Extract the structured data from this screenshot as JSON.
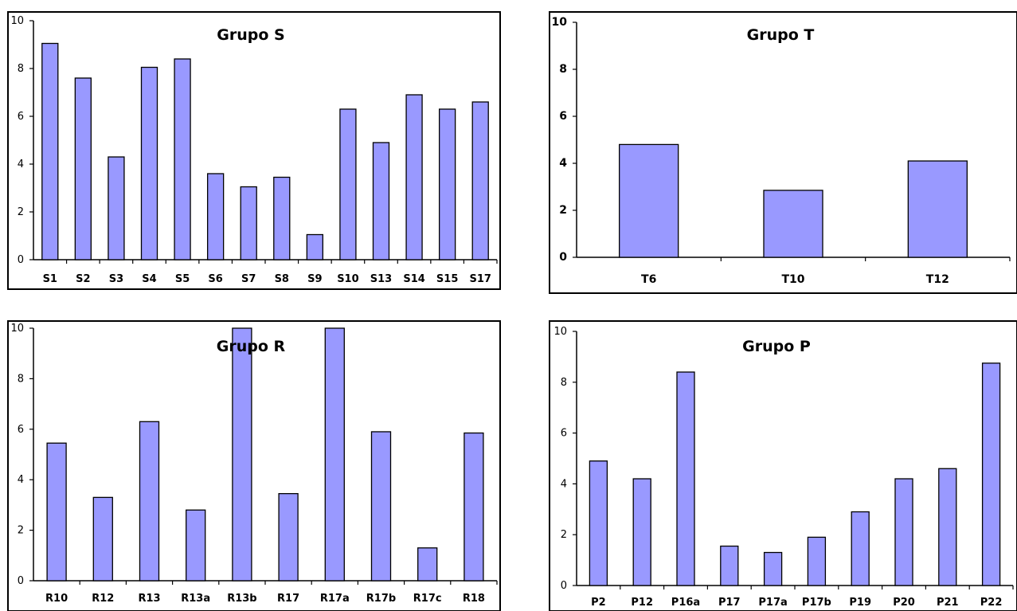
{
  "colors": {
    "bar_fill": "#9999ff",
    "bar_stroke": "#000000",
    "frame": "#000000",
    "background": "#ffffff"
  },
  "chart_data": [
    {
      "type": "bar",
      "title": "Grupo S",
      "categories": [
        "S1",
        "S2",
        "S3",
        "S4",
        "S5",
        "S6",
        "S7",
        "S8",
        "S9",
        "S10",
        "S13",
        "S14",
        "S15",
        "S17"
      ],
      "values": [
        9.05,
        7.6,
        4.3,
        8.05,
        8.4,
        3.6,
        3.05,
        3.45,
        1.05,
        6.3,
        4.9,
        6.9,
        6.3,
        6.6
      ],
      "yticks": [
        "0",
        "2",
        "4",
        "6",
        "8",
        "10"
      ],
      "ylim": [
        0,
        10
      ],
      "grid": false,
      "legend": "none"
    },
    {
      "type": "bar",
      "title": "Grupo T",
      "categories": [
        "T6",
        "T10",
        "T12"
      ],
      "values": [
        4.8,
        2.85,
        4.1
      ],
      "yticks": [
        "0",
        "2",
        "4",
        "6",
        "8",
        "10"
      ],
      "ylim": [
        0,
        10
      ],
      "grid": false,
      "legend": "none"
    },
    {
      "type": "bar",
      "title": "Grupo R",
      "categories": [
        "R10",
        "R12",
        "R13",
        "R13a",
        "R13b",
        "R17",
        "R17a",
        "R17b",
        "R17c",
        "R18"
      ],
      "values": [
        5.45,
        3.3,
        6.3,
        2.8,
        10,
        3.45,
        10,
        5.9,
        1.3,
        5.85
      ],
      "yticks": [
        "0",
        "2",
        "4",
        "6",
        "8",
        "10"
      ],
      "ylim": [
        0,
        10
      ],
      "grid": false,
      "legend": "none"
    },
    {
      "type": "bar",
      "title": "Grupo P",
      "categories": [
        "P2",
        "P12",
        "P16a",
        "P17",
        "P17a",
        "P17b",
        "P19",
        "P20",
        "P21",
        "P22"
      ],
      "values": [
        4.9,
        4.2,
        8.4,
        1.55,
        1.3,
        1.9,
        2.9,
        4.2,
        4.6,
        8.75
      ],
      "yticks": [
        "0",
        "2",
        "4",
        "6",
        "8",
        "10"
      ],
      "ylim": [
        0,
        10
      ],
      "grid": false,
      "legend": "none"
    }
  ]
}
